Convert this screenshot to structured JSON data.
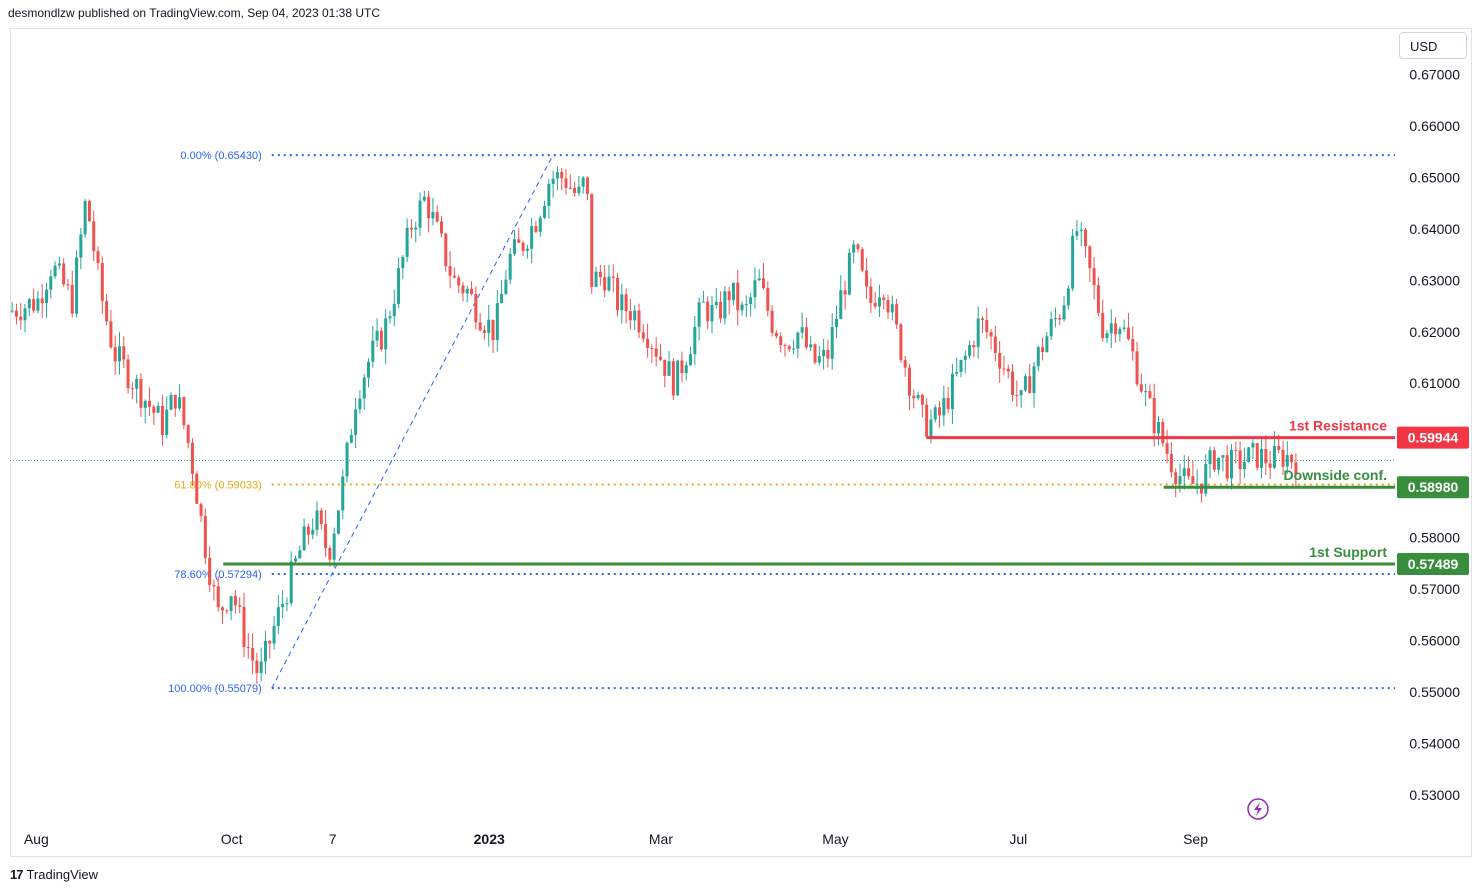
{
  "header": {
    "published_text": "desmondlzw published on TradingView.com, Sep 04, 2023 01:38 UTC"
  },
  "currency": "USD",
  "footer": {
    "logo_glyph": "17",
    "brand": "TradingView"
  },
  "colors": {
    "up": "#26a69a",
    "down": "#ef5350",
    "resistance": "#f23645",
    "support": "#388e3c",
    "fib_blue": "#2962ff",
    "fib_orange": "#e6a817",
    "grid_text": "#131722",
    "lightning": "#9c27b0"
  },
  "icons": {
    "lightning": "lightning-icon",
    "logo": "tradingview-logo-icon"
  },
  "chart_data": {
    "type": "candlestick",
    "y_axis": {
      "range": [
        0.524,
        0.679
      ],
      "ticks": [
        "0.67000",
        "0.66000",
        "0.65000",
        "0.64000",
        "0.63000",
        "0.62000",
        "0.61000",
        "0.60000",
        "0.59000",
        "0.58000",
        "0.57000",
        "0.56000",
        "0.55000",
        "0.54000",
        "0.53000"
      ]
    },
    "x_axis": {
      "range": [
        0,
        100
      ],
      "labels": [
        {
          "text": "Aug",
          "x": 1.9
        },
        {
          "text": "Oct",
          "x": 16.0
        },
        {
          "text": "7",
          "x": 23.3
        },
        {
          "text": "2023",
          "x": 34.6,
          "bold": true
        },
        {
          "text": "Mar",
          "x": 47.0
        },
        {
          "text": "May",
          "x": 59.6
        },
        {
          "text": "Jul",
          "x": 72.8
        },
        {
          "text": "Sep",
          "x": 85.6
        }
      ]
    },
    "price_path": [
      [
        0,
        0.624
      ],
      [
        2,
        0.626
      ],
      [
        3,
        0.633
      ],
      [
        4.5,
        0.626
      ],
      [
        5.5,
        0.646
      ],
      [
        6.5,
        0.628
      ],
      [
        7.5,
        0.616
      ],
      [
        9,
        0.61
      ],
      [
        11,
        0.602
      ],
      [
        12,
        0.608
      ],
      [
        13,
        0.597
      ],
      [
        14,
        0.58
      ],
      [
        15,
        0.565
      ],
      [
        16,
        0.57
      ],
      [
        17,
        0.56
      ],
      [
        18,
        0.553
      ],
      [
        19,
        0.562
      ],
      [
        20,
        0.57
      ],
      [
        21,
        0.578
      ],
      [
        22,
        0.584
      ],
      [
        23,
        0.577
      ],
      [
        24,
        0.59
      ],
      [
        25,
        0.608
      ],
      [
        26,
        0.615
      ],
      [
        27,
        0.62
      ],
      [
        28,
        0.63
      ],
      [
        29,
        0.641
      ],
      [
        30,
        0.646
      ],
      [
        31,
        0.638
      ],
      [
        32,
        0.63
      ],
      [
        33,
        0.628
      ],
      [
        34,
        0.623
      ],
      [
        35,
        0.62
      ],
      [
        36,
        0.634
      ],
      [
        37,
        0.637
      ],
      [
        38,
        0.642
      ],
      [
        39,
        0.65
      ],
      [
        40,
        0.65
      ],
      [
        41,
        0.646
      ],
      [
        41.6,
        0.65
      ],
      [
        42,
        0.63
      ],
      [
        43,
        0.631
      ],
      [
        44,
        0.625
      ],
      [
        45,
        0.624
      ],
      [
        46,
        0.62
      ],
      [
        47,
        0.615
      ],
      [
        48,
        0.61
      ],
      [
        49,
        0.617
      ],
      [
        50,
        0.625
      ],
      [
        51,
        0.623
      ],
      [
        52,
        0.628
      ],
      [
        53,
        0.623
      ],
      [
        54,
        0.63
      ],
      [
        55,
        0.622
      ],
      [
        56,
        0.618
      ],
      [
        57,
        0.62
      ],
      [
        58,
        0.614
      ],
      [
        59,
        0.615
      ],
      [
        60,
        0.627
      ],
      [
        61,
        0.636
      ],
      [
        62,
        0.625
      ],
      [
        63,
        0.63
      ],
      [
        64,
        0.62
      ],
      [
        65,
        0.61
      ],
      [
        66,
        0.602
      ],
      [
        67,
        0.603
      ],
      [
        68,
        0.609
      ],
      [
        69,
        0.615
      ],
      [
        70,
        0.622
      ],
      [
        71,
        0.618
      ],
      [
        72,
        0.612
      ],
      [
        73,
        0.606
      ],
      [
        74,
        0.614
      ],
      [
        75,
        0.62
      ],
      [
        76,
        0.625
      ],
      [
        77,
        0.64
      ],
      [
        78,
        0.631
      ],
      [
        79,
        0.62
      ],
      [
        80,
        0.623
      ],
      [
        81,
        0.616
      ],
      [
        82,
        0.607
      ],
      [
        83,
        0.6
      ],
      [
        84,
        0.594
      ],
      [
        85,
        0.59
      ],
      [
        86,
        0.591
      ],
      [
        87,
        0.596
      ],
      [
        88,
        0.594
      ],
      [
        89,
        0.595
      ],
      [
        90,
        0.596
      ],
      [
        91,
        0.595
      ],
      [
        92,
        0.596
      ],
      [
        93,
        0.595
      ]
    ],
    "current_price": 0.595,
    "fibonacci": {
      "levels": [
        {
          "label": "0.00% (0.65430)",
          "price": 0.6543,
          "color": "blue"
        },
        {
          "label": "61.80% (0.59033)",
          "price": 0.59033,
          "color": "orange"
        },
        {
          "label": "78.60% (0.57294)",
          "price": 0.57294,
          "color": "blue"
        },
        {
          "label": "100.00% (0.55079)",
          "price": 0.55079,
          "color": "blue"
        }
      ],
      "trend_from": {
        "x": 18.9,
        "price": 0.55079
      },
      "trend_to": {
        "x": 39.2,
        "price": 0.6543
      }
    },
    "levels": [
      {
        "name": "1st Resistance",
        "price": 0.59944,
        "label": "0.59944",
        "x_from": 66.2,
        "color": "resistance"
      },
      {
        "name": "Downside conf.",
        "price": 0.5898,
        "label": "0.58980",
        "x_from": 83.3,
        "color": "support"
      },
      {
        "name": "1st Support",
        "price": 0.57489,
        "label": "0.57489",
        "x_from": 15.4,
        "color": "support"
      }
    ]
  }
}
